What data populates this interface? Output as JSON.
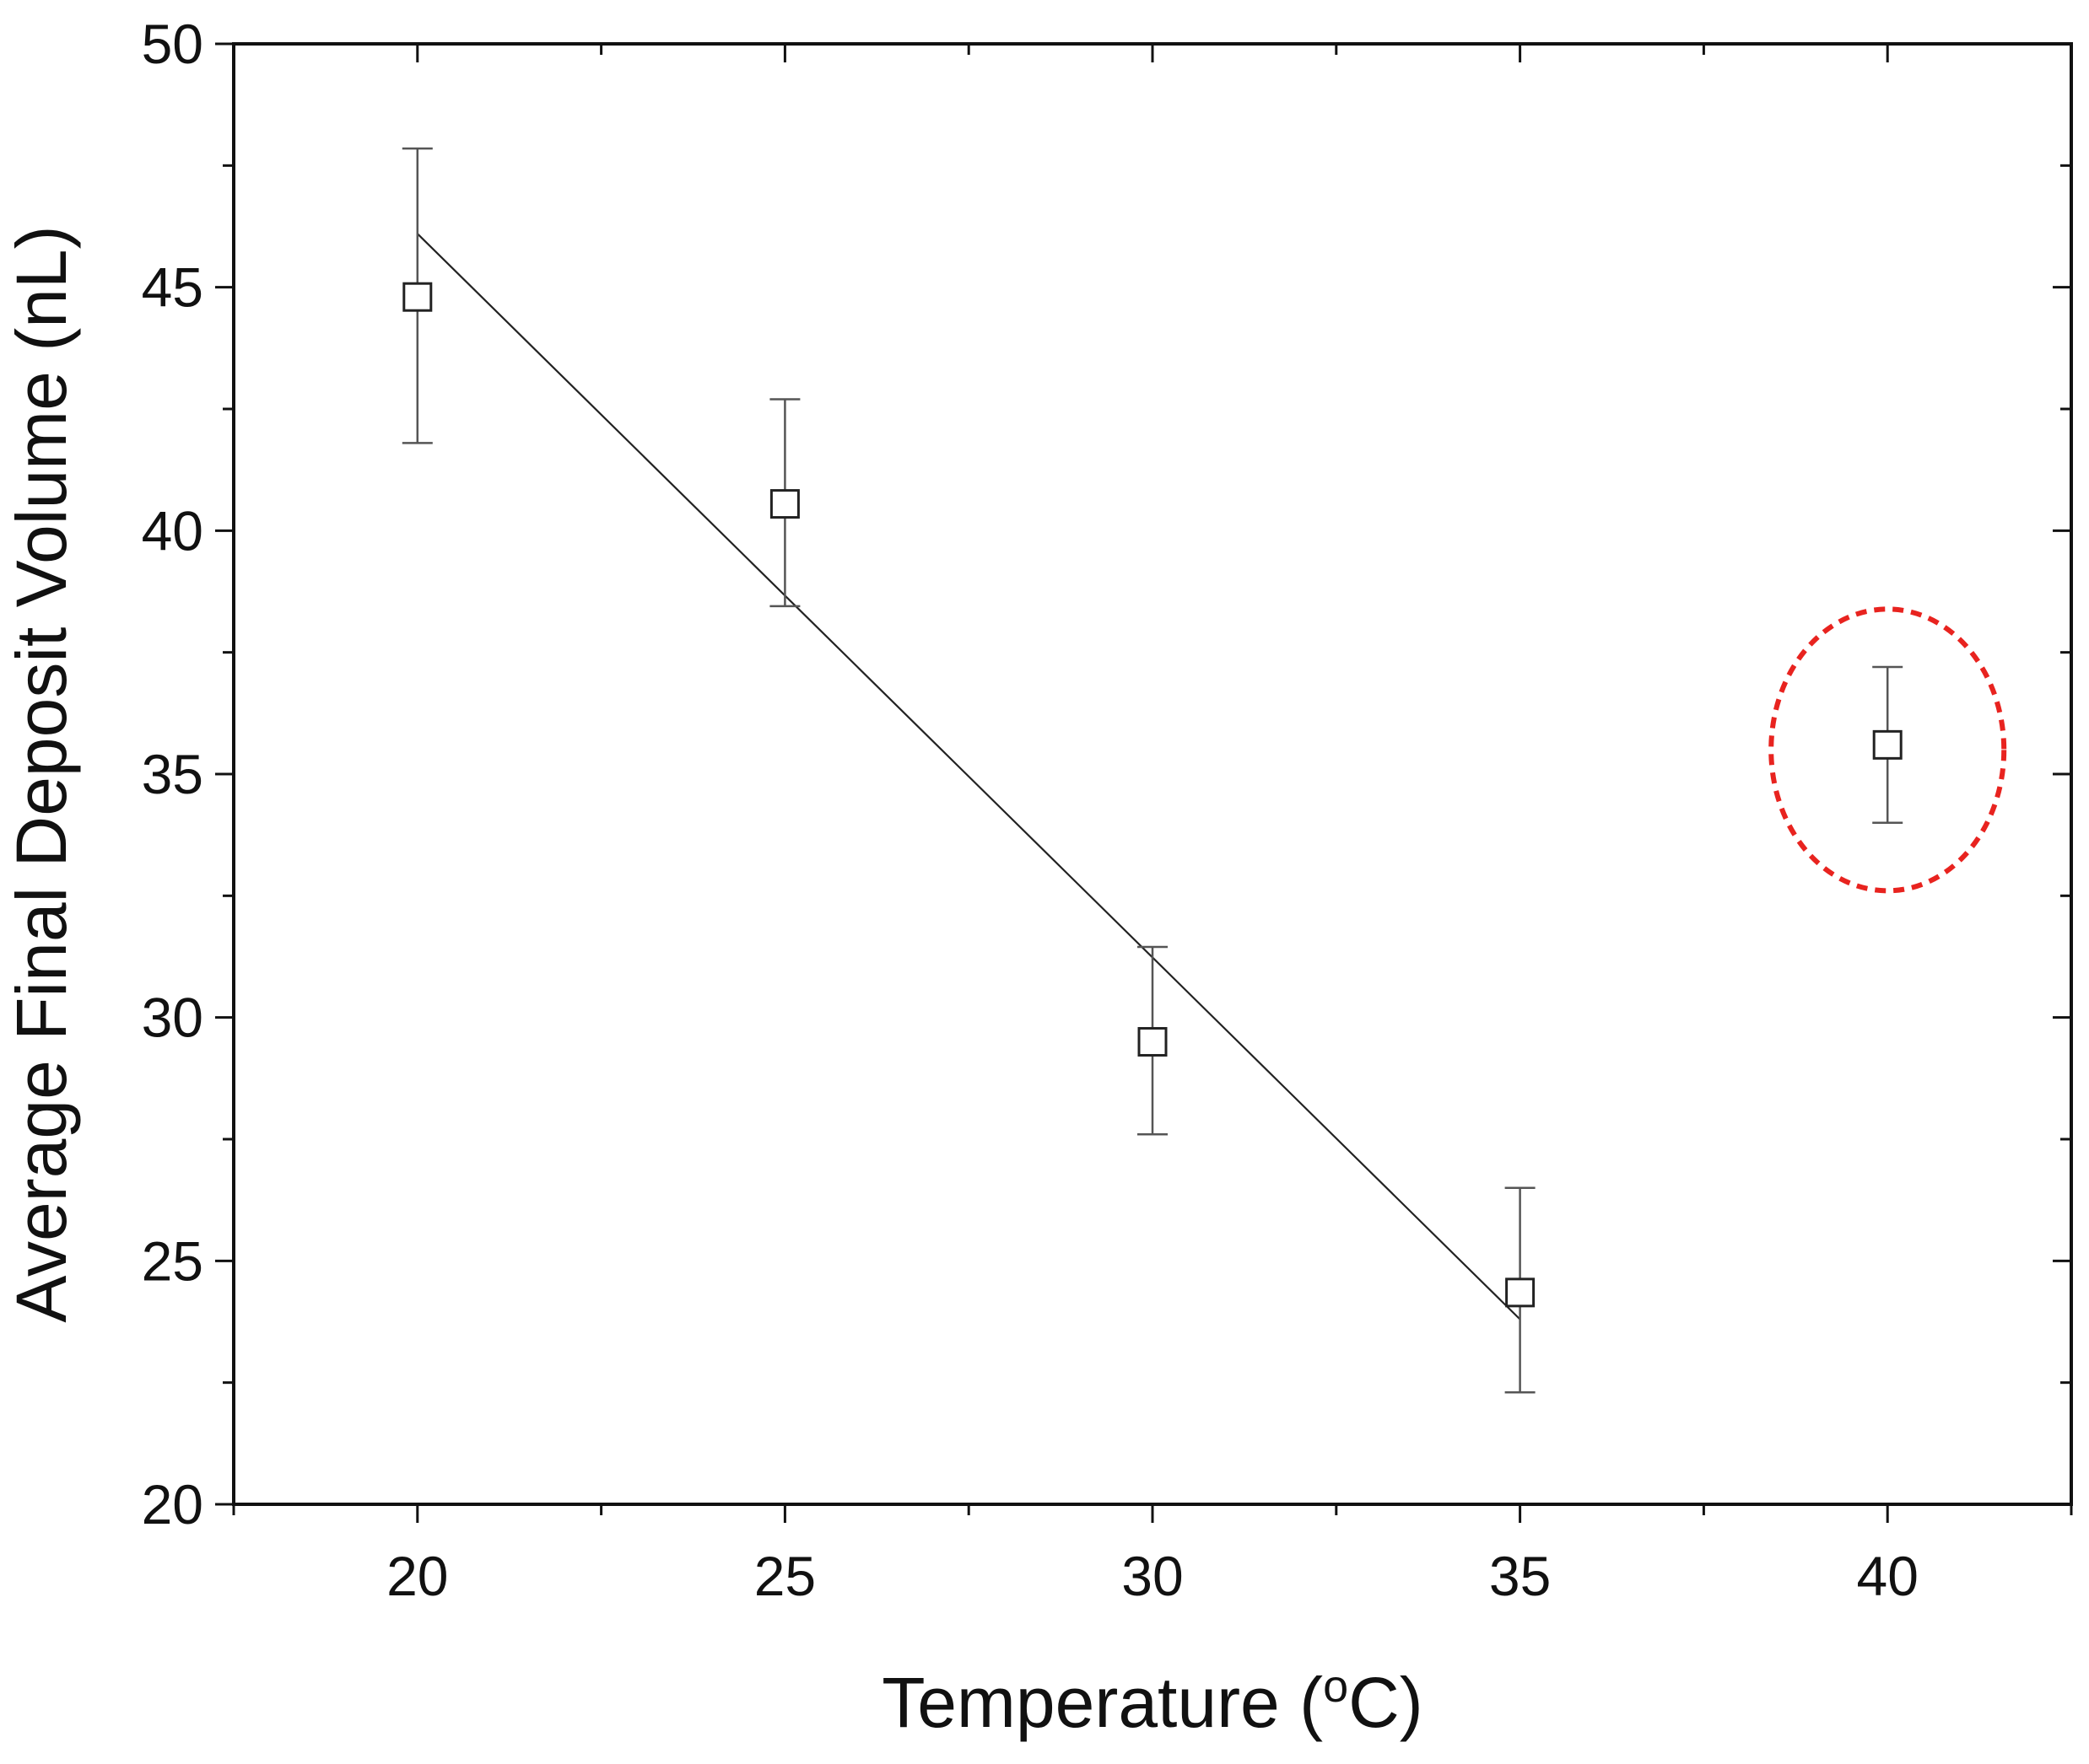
{
  "chart_data": {
    "type": "scatter",
    "title": "",
    "xlabel_main": "Temperature (",
    "xlabel_sup": "o",
    "xlabel_end": "C)",
    "ylabel": "Average Final Deposit Volume (nL)",
    "xlim": [
      17.5,
      42.5
    ],
    "ylim": [
      20,
      50
    ],
    "x_ticks": [
      20,
      25,
      30,
      35,
      40
    ],
    "x_tick_labels": [
      "20",
      "25",
      "30",
      "35",
      "40"
    ],
    "x_minor_ticks": [
      17.5,
      22.5,
      27.5,
      32.5,
      37.5,
      42.5
    ],
    "y_ticks": [
      20,
      25,
      30,
      35,
      40,
      45,
      50
    ],
    "y_tick_labels": [
      "20",
      "25",
      "30",
      "35",
      "40",
      "45",
      "50"
    ],
    "y_minor_ticks": [
      22.5,
      27.5,
      32.5,
      37.5,
      42.5,
      47.5
    ],
    "grid": false,
    "series": [
      {
        "marker": "open-square",
        "x": [
          20,
          25,
          30,
          35,
          40
        ],
        "y": [
          44.8,
          40.55,
          29.5,
          24.35,
          35.6
        ],
        "err_low": [
          41.8,
          38.45,
          27.6,
          22.3,
          34.0
        ],
        "err_high": [
          47.85,
          42.7,
          31.45,
          26.5,
          37.2
        ]
      }
    ],
    "fit_line": {
      "x": [
        20,
        35
      ],
      "y": [
        46.1,
        23.8
      ]
    },
    "annotation": {
      "shape": "dashed-ellipse",
      "color": "#e8231f",
      "around_point_x": 40
    }
  }
}
